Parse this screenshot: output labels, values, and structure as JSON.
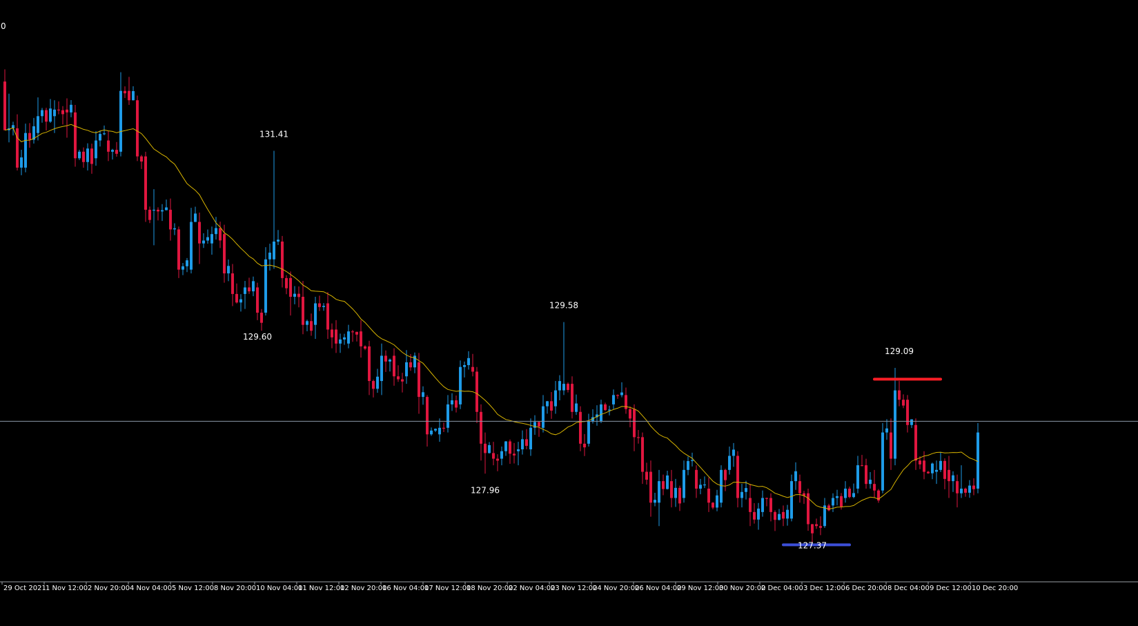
{
  "chart_data": {
    "type": "candlestick",
    "title": "",
    "corner_label": "0",
    "current_price": 128.52,
    "ylim": [
      126.9,
      132.8
    ],
    "colors": {
      "background": "#000000",
      "bull": "#1E9BE8",
      "bear": "#E0163F",
      "moving_average": "#D8B400",
      "current_price_line": "#8C9AA8",
      "resistance": "#FF1E26",
      "support": "#3C4FD8",
      "axis": "#9AA0A6",
      "text": "#FFFFFF"
    },
    "x_tick_labels": [
      "29 Oct 2021",
      "1 Nov 12:00",
      "2 Nov 20:00",
      "4 Nov 04:00",
      "5 Nov 12:00",
      "8 Nov 20:00",
      "10 Nov 04:00",
      "11 Nov 12:00",
      "12 Nov 20:00",
      "16 Nov 04:00",
      "17 Nov 12:00",
      "18 Nov 20:00",
      "22 Nov 04:00",
      "23 Nov 12:00",
      "24 Nov 20:00",
      "26 Nov 04:00",
      "29 Nov 12:00",
      "30 Nov 20:00",
      "2 Dec 04:00",
      "3 Dec 12:00",
      "6 Dec 20:00",
      "8 Dec 04:00",
      "9 Dec 12:00",
      "10 Dec 20:00"
    ],
    "tick_index_step": 10,
    "annotations": [
      {
        "label": "131.41",
        "index": 65,
        "price": 131.41,
        "position": "above"
      },
      {
        "label": "129.60",
        "index": 61,
        "price": 129.6,
        "position": "below"
      },
      {
        "label": "129.58",
        "index": 135,
        "price": 129.58,
        "position": "above"
      },
      {
        "label": "127.96",
        "index": 116,
        "price": 127.96,
        "position": "below"
      },
      {
        "label": "129.09",
        "index": 216,
        "price": 129.09,
        "position": "above"
      },
      {
        "label": "127.37",
        "index": 195,
        "price": 127.37,
        "position": "below"
      }
    ],
    "levels": [
      {
        "name": "resistance",
        "price": 128.97,
        "from_index": 210,
        "to_index": 226
      },
      {
        "name": "support",
        "price": 127.2,
        "from_index": 188,
        "to_index": 204
      }
    ],
    "anchors": [
      [
        0,
        132.15,
        132.28,
        131.78,
        131.63
      ],
      [
        1,
        131.63,
        132.02,
        131.5,
        131.65
      ],
      [
        3,
        131.65,
        131.8,
        131.2,
        131.23
      ],
      [
        5,
        131.23,
        131.7,
        131.18,
        131.6
      ],
      [
        8,
        131.6,
        131.98,
        131.52,
        131.78
      ],
      [
        12,
        131.78,
        131.95,
        131.6,
        131.85
      ],
      [
        15,
        131.85,
        131.97,
        131.55,
        131.82
      ],
      [
        17,
        131.82,
        131.9,
        131.24,
        131.33
      ],
      [
        22,
        131.33,
        131.62,
        131.25,
        131.52
      ],
      [
        25,
        131.52,
        131.62,
        131.3,
        131.4
      ],
      [
        28,
        131.4,
        132.25,
        131.35,
        132.05
      ],
      [
        30,
        132.05,
        132.2,
        131.9,
        131.95
      ],
      [
        32,
        131.95,
        132.0,
        131.3,
        131.35
      ],
      [
        34,
        131.35,
        131.4,
        130.65,
        130.78
      ],
      [
        36,
        130.78,
        131.0,
        130.4,
        130.78
      ],
      [
        40,
        130.78,
        130.9,
        130.45,
        130.57
      ],
      [
        42,
        130.57,
        130.6,
        130.05,
        130.14
      ],
      [
        45,
        130.14,
        130.8,
        130.1,
        130.65
      ],
      [
        47,
        130.65,
        130.75,
        130.2,
        130.42
      ],
      [
        50,
        130.42,
        130.6,
        130.3,
        130.52
      ],
      [
        53,
        130.52,
        130.62,
        130.0,
        130.1
      ],
      [
        55,
        130.1,
        130.2,
        129.75,
        129.88
      ],
      [
        58,
        129.88,
        130.02,
        129.72,
        129.95
      ],
      [
        61,
        129.95,
        130.0,
        129.6,
        129.68
      ],
      [
        63,
        129.68,
        130.38,
        129.65,
        130.25
      ],
      [
        65,
        130.25,
        131.41,
        130.15,
        130.44
      ],
      [
        67,
        130.44,
        130.5,
        129.95,
        130.05
      ],
      [
        69,
        130.05,
        130.12,
        129.65,
        129.85
      ],
      [
        72,
        129.85,
        130.02,
        129.45,
        129.55
      ],
      [
        75,
        129.55,
        129.85,
        129.4,
        129.78
      ],
      [
        78,
        129.78,
        129.9,
        129.4,
        129.5
      ],
      [
        80,
        129.5,
        129.6,
        129.25,
        129.35
      ],
      [
        83,
        129.35,
        129.55,
        129.3,
        129.48
      ],
      [
        86,
        129.48,
        129.6,
        129.2,
        129.32
      ],
      [
        88,
        129.32,
        129.38,
        128.8,
        128.95
      ],
      [
        91,
        128.95,
        129.35,
        128.8,
        129.22
      ],
      [
        94,
        129.22,
        129.3,
        128.9,
        129.0
      ],
      [
        97,
        129.0,
        129.28,
        128.92,
        129.15
      ],
      [
        100,
        129.15,
        129.25,
        128.6,
        128.78
      ],
      [
        102,
        128.78,
        128.8,
        128.25,
        128.38
      ],
      [
        105,
        128.38,
        128.55,
        128.3,
        128.45
      ],
      [
        107,
        128.45,
        128.8,
        128.4,
        128.7
      ],
      [
        110,
        128.7,
        129.17,
        128.65,
        129.1
      ],
      [
        113,
        129.1,
        129.24,
        129.0,
        129.05
      ],
      [
        114,
        129.05,
        129.1,
        128.5,
        128.62
      ],
      [
        115,
        128.62,
        128.7,
        128.1,
        128.28
      ],
      [
        116,
        128.28,
        128.4,
        127.96,
        128.18
      ],
      [
        118,
        128.18,
        128.3,
        128.05,
        128.12
      ],
      [
        120,
        128.12,
        128.25,
        128.05,
        128.2
      ],
      [
        124,
        128.2,
        128.3,
        128.05,
        128.22
      ],
      [
        127,
        128.22,
        128.55,
        128.15,
        128.45
      ],
      [
        130,
        128.45,
        128.8,
        128.4,
        128.68
      ],
      [
        133,
        128.68,
        128.95,
        128.6,
        128.85
      ],
      [
        135,
        128.85,
        129.58,
        128.8,
        128.92
      ],
      [
        137,
        128.92,
        129.0,
        128.55,
        128.62
      ],
      [
        139,
        128.62,
        128.68,
        128.2,
        128.28
      ],
      [
        141,
        128.28,
        128.6,
        128.25,
        128.52
      ],
      [
        144,
        128.52,
        128.75,
        128.5,
        128.7
      ],
      [
        147,
        128.7,
        128.86,
        128.65,
        128.8
      ],
      [
        150,
        128.8,
        128.88,
        128.6,
        128.65
      ],
      [
        152,
        128.65,
        128.7,
        128.2,
        128.35
      ],
      [
        154,
        128.35,
        128.4,
        127.85,
        127.98
      ],
      [
        156,
        127.98,
        128.1,
        127.5,
        127.65
      ],
      [
        158,
        127.65,
        128.0,
        127.4,
        127.88
      ],
      [
        161,
        127.88,
        128.0,
        127.6,
        127.7
      ],
      [
        164,
        127.7,
        128.1,
        127.65,
        128.0
      ],
      [
        167,
        128.0,
        128.05,
        127.7,
        127.8
      ],
      [
        170,
        127.8,
        127.92,
        127.55,
        127.65
      ],
      [
        173,
        127.65,
        128.05,
        127.6,
        128.0
      ],
      [
        175,
        128.0,
        128.25,
        127.95,
        128.15
      ],
      [
        177,
        128.15,
        128.2,
        127.6,
        127.7
      ],
      [
        180,
        127.7,
        127.85,
        127.4,
        127.55
      ],
      [
        183,
        127.55,
        127.78,
        127.5,
        127.7
      ],
      [
        185,
        127.7,
        127.75,
        127.45,
        127.55
      ],
      [
        188,
        127.55,
        127.62,
        127.4,
        127.48
      ],
      [
        190,
        127.48,
        127.95,
        127.45,
        127.88
      ],
      [
        192,
        127.88,
        127.95,
        127.65,
        127.75
      ],
      [
        194,
        127.75,
        127.8,
        127.35,
        127.42
      ],
      [
        196,
        127.42,
        127.48,
        127.37,
        127.4
      ],
      [
        198,
        127.4,
        127.7,
        127.38,
        127.62
      ],
      [
        200,
        127.62,
        127.75,
        127.55,
        127.7
      ],
      [
        203,
        127.7,
        127.88,
        127.65,
        127.8
      ],
      [
        206,
        127.8,
        128.15,
        127.75,
        128.05
      ],
      [
        208,
        128.05,
        128.12,
        127.8,
        127.85
      ],
      [
        210,
        127.85,
        128.0,
        127.7,
        127.78
      ],
      [
        212,
        127.78,
        128.5,
        127.75,
        128.4
      ],
      [
        214,
        128.4,
        128.55,
        128.0,
        128.12
      ],
      [
        215,
        128.12,
        129.09,
        128.05,
        128.85
      ],
      [
        216,
        128.85,
        128.95,
        128.68,
        128.75
      ],
      [
        218,
        128.75,
        128.8,
        128.4,
        128.48
      ],
      [
        220,
        128.48,
        128.55,
        128.0,
        128.1
      ],
      [
        222,
        128.1,
        128.2,
        127.9,
        127.98
      ],
      [
        225,
        127.98,
        128.1,
        127.85,
        128.0
      ],
      [
        228,
        128.0,
        128.15,
        127.7,
        127.88
      ],
      [
        230,
        127.88,
        127.95,
        127.6,
        127.75
      ],
      [
        231,
        127.75,
        128.05,
        127.7,
        127.8
      ],
      [
        235,
        127.8,
        128.5,
        127.75,
        128.4
      ]
    ]
  }
}
